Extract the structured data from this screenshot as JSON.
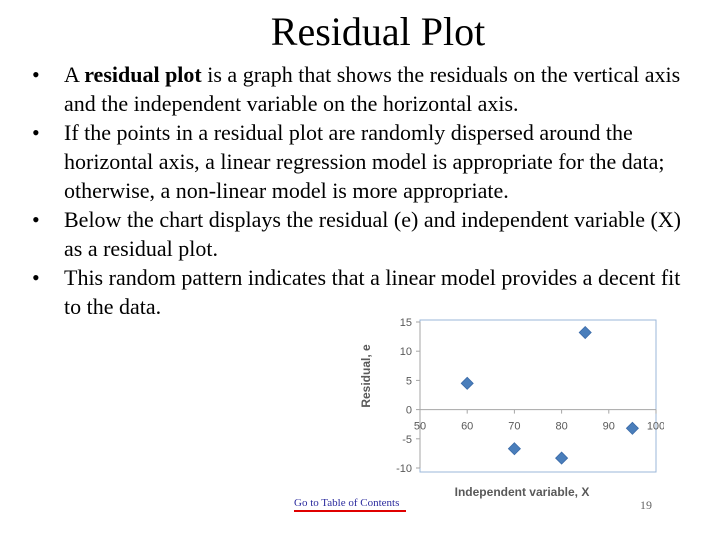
{
  "title": "Residual Plot",
  "bullets": [
    {
      "prefix": "A ",
      "bold": "residual plot",
      "rest": " is a graph that shows the residuals on the vertical axis and the independent variable on the horizontal axis."
    },
    {
      "prefix": "",
      "bold": "",
      "rest": "If the points in a residual plot are randomly dispersed around the horizontal axis, a linear regression model is appropriate for the data; otherwise, a non-linear model is more appropriate."
    },
    {
      "prefix": "",
      "bold": "",
      "rest": "Below the chart displays the residual (e) and independent variable (X) as a residual plot."
    },
    {
      "prefix": "",
      "bold": "",
      "rest": "This random pattern indicates that a linear model provides a decent fit to the data."
    }
  ],
  "bullet_glyph": "•",
  "footer": {
    "link_text": "Go to Table of Contents",
    "page_number": "19"
  },
  "chart_data": {
    "type": "scatter",
    "title": "",
    "xlabel": "Independent variable, X",
    "ylabel": "Residual, e",
    "xlim": [
      50,
      100
    ],
    "ylim": [
      -10,
      15
    ],
    "xticks": [
      50,
      60,
      70,
      80,
      90,
      100
    ],
    "yticks": [
      -10,
      -5,
      0,
      5,
      10,
      15
    ],
    "grid": false,
    "marker_color": "#4a7ebb",
    "points": [
      {
        "x": 60,
        "y": 4.5
      },
      {
        "x": 70,
        "y": -6.7
      },
      {
        "x": 80,
        "y": -8.3
      },
      {
        "x": 85,
        "y": 13.2
      },
      {
        "x": 95,
        "y": -3.2
      }
    ]
  }
}
